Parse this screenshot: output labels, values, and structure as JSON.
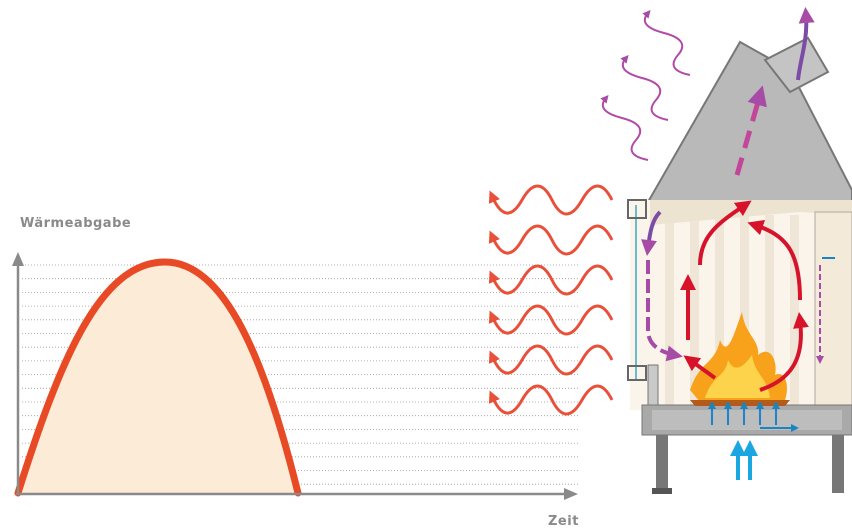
{
  "chart": {
    "y_axis_label": "Wärmeabgabe",
    "x_axis_label": "Zeit"
  }
}
